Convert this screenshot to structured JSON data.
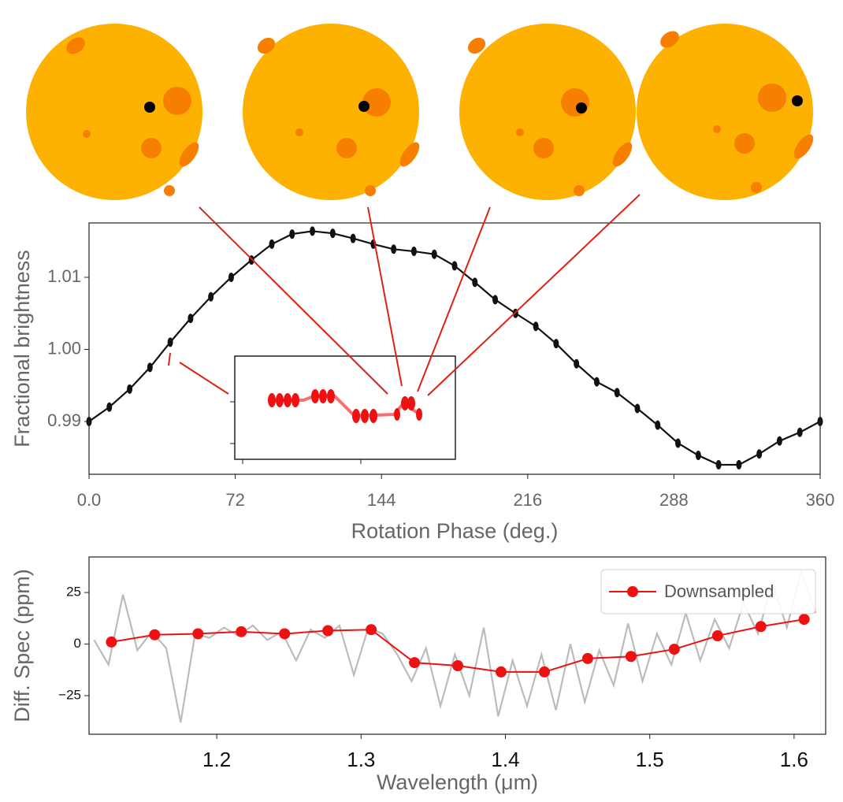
{
  "chart_data": [
    {
      "type": "line",
      "xlabel": "Rotation Phase (deg.)",
      "ylabel": "Fractional brightness",
      "x": [
        0,
        10,
        20,
        30,
        40,
        50,
        60,
        70,
        80,
        90,
        100,
        110,
        120,
        130,
        140,
        150,
        160,
        170,
        180,
        190,
        200,
        210,
        220,
        230,
        240,
        250,
        260,
        270,
        280,
        290,
        300,
        310,
        320,
        330,
        340,
        350,
        360
      ],
      "values": [
        0.99,
        0.992,
        0.9945,
        0.9975,
        1.001,
        1.0043,
        1.0073,
        1.01,
        1.0124,
        1.0146,
        1.016,
        1.0164,
        1.0161,
        1.0154,
        1.0146,
        1.0139,
        1.0136,
        1.0132,
        1.0116,
        1.0093,
        1.0069,
        1.005,
        1.0032,
        1.0008,
        0.998,
        0.9955,
        0.994,
        0.9918,
        0.9895,
        0.987,
        0.9853,
        0.984,
        0.984,
        0.9855,
        0.9873,
        0.9885,
        0.99
      ],
      "color": "#111111",
      "xlim": [
        0,
        360
      ],
      "xticks": [
        {
          "value": 0,
          "label": "0.0"
        },
        72,
        144,
        216,
        288,
        360
      ],
      "ylim": [
        0.98268,
        1.01754
      ],
      "yticks": [
        0.99,
        {
          "value": 1,
          "label": "1.00"
        },
        1.01
      ]
    },
    {
      "type": "line",
      "xlabel": "Wavelength (μm)",
      "ylabel": "Diff. Spec (ppm)",
      "series": [
        {
          "color": "#bbbbbb",
          "x": [
            1.115,
            1.125,
            1.135,
            1.145,
            1.155,
            1.165,
            1.175,
            1.185,
            1.195,
            1.205,
            1.215,
            1.225,
            1.235,
            1.245,
            1.255,
            1.265,
            1.275,
            1.285,
            1.295,
            1.305,
            1.315,
            1.325,
            1.335,
            1.345,
            1.355,
            1.365,
            1.375,
            1.385,
            1.395,
            1.405,
            1.415,
            1.425,
            1.435,
            1.445,
            1.455,
            1.465,
            1.475,
            1.485,
            1.495,
            1.505,
            1.515,
            1.525,
            1.535,
            1.545,
            1.555,
            1.565,
            1.575,
            1.585,
            1.595,
            1.605,
            1.615
          ],
          "values": [
            2,
            -10,
            24,
            -3,
            6,
            -2,
            -38,
            5,
            3,
            8,
            4,
            9,
            2,
            6,
            -8,
            7,
            3,
            9,
            -15,
            8,
            5,
            -5,
            -18,
            -2,
            -30,
            -5,
            -25,
            8,
            -35,
            -8,
            -30,
            -5,
            -32,
            0,
            -28,
            -3,
            -20,
            10,
            -18,
            5,
            -10,
            15,
            -8,
            12,
            -2,
            20,
            5,
            30,
            8,
            35,
            15
          ]
        },
        {
          "name": "Downsampled",
          "color": "#ee1111",
          "x": [
            1.127,
            1.157,
            1.187,
            1.217,
            1.247,
            1.277,
            1.307,
            1.337,
            1.367,
            1.397,
            1.427,
            1.457,
            1.487,
            1.517,
            1.547,
            1.577,
            1.607
          ],
          "values": [
            1,
            4.5,
            5,
            6,
            5,
            6.5,
            7,
            -9,
            -10.5,
            -13.5,
            -13.5,
            -7,
            -6,
            -2.5,
            4,
            8.5,
            12
          ]
        }
      ],
      "xlim": [
        1.1115,
        1.6219
      ],
      "xticks": [
        1.2,
        1.3,
        1.4,
        1.5,
        1.6
      ],
      "ylim": [
        -43.7,
        42.2
      ],
      "yticks": [
        {
          "value": -25,
          "label": "−25"
        },
        0,
        25
      ]
    }
  ]
}
